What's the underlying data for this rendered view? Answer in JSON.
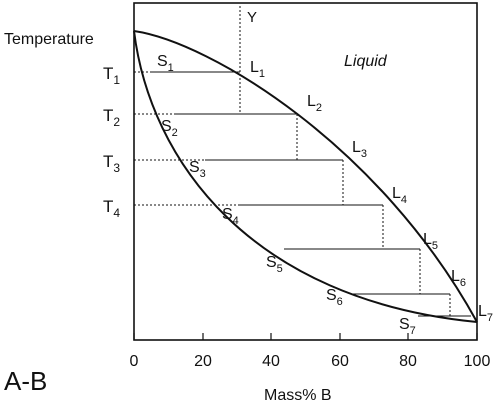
{
  "labels": {
    "y_axis": "Temperature",
    "x_axis": "Mass% B",
    "system": "A-B",
    "region": "Liquid",
    "composition_marker": "Y"
  },
  "chart_data": {
    "type": "line",
    "xlabel": "Mass% B",
    "ylabel": "Temperature",
    "xlim": [
      0,
      100
    ],
    "x_ticks": [
      0,
      20,
      40,
      60,
      80,
      100
    ],
    "tick_labels": [
      "0",
      "20",
      "40",
      "60",
      "80",
      "100"
    ],
    "temperature_labels": [
      {
        "name": "T",
        "sub": "1"
      },
      {
        "name": "T",
        "sub": "2"
      },
      {
        "name": "T",
        "sub": "3"
      },
      {
        "name": "T",
        "sub": "4"
      }
    ],
    "tie_lines": [
      {
        "s": {
          "name": "S",
          "sub": "1"
        },
        "l": {
          "name": "L",
          "sub": "1"
        },
        "solidus_x": 6,
        "liquidus_x": 31
      },
      {
        "s": {
          "name": "S",
          "sub": "2"
        },
        "l": {
          "name": "L",
          "sub": "2"
        },
        "solidus_x": 13,
        "liquidus_x": 47
      },
      {
        "s": {
          "name": "S",
          "sub": "3"
        },
        "l": {
          "name": "L",
          "sub": "3"
        },
        "solidus_x": 21,
        "liquidus_x": 61
      },
      {
        "s": {
          "name": "S",
          "sub": "4"
        },
        "l": {
          "name": "L",
          "sub": "4"
        },
        "solidus_x": 31,
        "liquidus_x": 72
      },
      {
        "s": {
          "name": "S",
          "sub": "5"
        },
        "l": {
          "name": "L",
          "sub": "5"
        },
        "solidus_x": 44,
        "liquidus_x": 83
      },
      {
        "s": {
          "name": "S",
          "sub": "6"
        },
        "l": {
          "name": "L",
          "sub": "6"
        },
        "solidus_x": 64,
        "liquidus_x": 92
      },
      {
        "s": {
          "name": "S",
          "sub": "7"
        },
        "l": {
          "name": "L",
          "sub": "7"
        },
        "solidus_x": 83,
        "liquidus_x": 99
      }
    ],
    "composition_line_x": 31
  }
}
